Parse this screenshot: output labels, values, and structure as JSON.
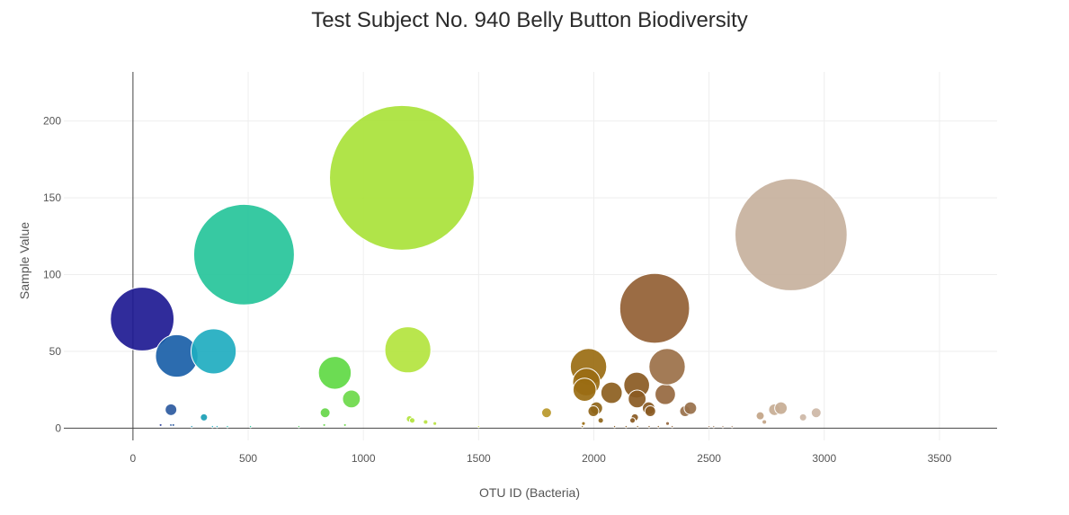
{
  "chart_data": {
    "type": "scatter",
    "title": "Test Subject No. 940 Belly Button Biodiversity",
    "xlabel": "OTU ID (Bacteria)",
    "ylabel": "Sample Value",
    "xlim": [
      -300,
      3750
    ],
    "ylim": [
      -8,
      232
    ],
    "xticks": [
      0,
      500,
      1000,
      1500,
      2000,
      2500,
      3000,
      3500
    ],
    "yticks": [
      0,
      50,
      100,
      150,
      200
    ],
    "grid": true,
    "colorscale": "Earth",
    "points": [
      {
        "x": 40,
        "y": 71,
        "color": "#1e1a93"
      },
      {
        "x": 190,
        "y": 47,
        "color": "#1a5fa8"
      },
      {
        "x": 350,
        "y": 50,
        "color": "#1fadc0"
      },
      {
        "x": 165,
        "y": 12,
        "color": "#2d5aa0"
      },
      {
        "x": 308,
        "y": 7,
        "color": "#1a9eb5"
      },
      {
        "x": 482,
        "y": 113,
        "color": "#26c49a"
      },
      {
        "x": 876,
        "y": 36,
        "color": "#5fd944"
      },
      {
        "x": 948,
        "y": 19,
        "color": "#6cd94a"
      },
      {
        "x": 834,
        "y": 10,
        "color": "#66d649"
      },
      {
        "x": 1167,
        "y": 163,
        "color": "#a9e23a"
      },
      {
        "x": 1193,
        "y": 51,
        "color": "#b3e43e"
      },
      {
        "x": 1795,
        "y": 10,
        "color": "#b8982a"
      },
      {
        "x": 1977,
        "y": 40,
        "color": "#9a6d12"
      },
      {
        "x": 1968,
        "y": 30,
        "color": "#9a6d12"
      },
      {
        "x": 1960,
        "y": 25,
        "color": "#9a6d12"
      },
      {
        "x": 2011,
        "y": 13,
        "color": "#8f6519"
      },
      {
        "x": 1998,
        "y": 11,
        "color": "#8f6519"
      },
      {
        "x": 2077,
        "y": 23,
        "color": "#8c5e1e"
      },
      {
        "x": 2186,
        "y": 28,
        "color": "#8a5a22"
      },
      {
        "x": 2188,
        "y": 19,
        "color": "#8a5a22"
      },
      {
        "x": 2238,
        "y": 13,
        "color": "#8a5a22"
      },
      {
        "x": 2245,
        "y": 11,
        "color": "#8a5a22"
      },
      {
        "x": 2264,
        "y": 78,
        "color": "#926034"
      },
      {
        "x": 2310,
        "y": 22,
        "color": "#96683f"
      },
      {
        "x": 2318,
        "y": 40,
        "color": "#9b7048"
      },
      {
        "x": 2396,
        "y": 11,
        "color": "#98704a"
      },
      {
        "x": 2419,
        "y": 13,
        "color": "#98704a"
      },
      {
        "x": 2856,
        "y": 126,
        "color": "#c7b19d"
      },
      {
        "x": 2722,
        "y": 8,
        "color": "#c2a487"
      },
      {
        "x": 2784,
        "y": 12,
        "color": "#c7ac94"
      },
      {
        "x": 2812,
        "y": 13,
        "color": "#c7ac94"
      },
      {
        "x": 2965,
        "y": 10,
        "color": "#cdb7a6"
      },
      {
        "x": 2908,
        "y": 7,
        "color": "#cdb7a6"
      },
      {
        "x": 2178,
        "y": 7,
        "color": "#8a5a22"
      },
      {
        "x": 2168,
        "y": 5,
        "color": "#8a5a22"
      },
      {
        "x": 1200,
        "y": 6,
        "color": "#b3e43e"
      },
      {
        "x": 1212,
        "y": 5,
        "color": "#b3e43e"
      },
      {
        "x": 1270,
        "y": 4,
        "color": "#b8e23f"
      },
      {
        "x": 1310,
        "y": 3,
        "color": "#b8e23f"
      },
      {
        "x": 2030,
        "y": 5,
        "color": "#8f6519"
      },
      {
        "x": 1955,
        "y": 3,
        "color": "#9a6d12"
      },
      {
        "x": 2740,
        "y": 4,
        "color": "#c2a487"
      },
      {
        "x": 2320,
        "y": 3,
        "color": "#96683f"
      },
      {
        "x": 120,
        "y": 2,
        "color": "#2a3f9a"
      },
      {
        "x": 165,
        "y": 2,
        "color": "#2d5aa0"
      },
      {
        "x": 175,
        "y": 2,
        "color": "#2d5aa0"
      },
      {
        "x": 255,
        "y": 1,
        "color": "#1a8fb0"
      },
      {
        "x": 345,
        "y": 1,
        "color": "#1fadc0"
      },
      {
        "x": 365,
        "y": 1,
        "color": "#1fadc0"
      },
      {
        "x": 410,
        "y": 1,
        "color": "#23b8b0"
      },
      {
        "x": 510,
        "y": 1,
        "color": "#26c49a"
      },
      {
        "x": 720,
        "y": 1,
        "color": "#4ecf5a"
      },
      {
        "x": 830,
        "y": 2,
        "color": "#66d649"
      },
      {
        "x": 920,
        "y": 2,
        "color": "#6cd94a"
      },
      {
        "x": 1500,
        "y": 1,
        "color": "#c9e04a"
      },
      {
        "x": 1950,
        "y": 1,
        "color": "#9a6d12"
      },
      {
        "x": 2090,
        "y": 1,
        "color": "#8c5e1e"
      },
      {
        "x": 2140,
        "y": 1,
        "color": "#8a5a22"
      },
      {
        "x": 2190,
        "y": 1,
        "color": "#8a5a22"
      },
      {
        "x": 2240,
        "y": 1,
        "color": "#8a5a22"
      },
      {
        "x": 2280,
        "y": 1,
        "color": "#8a5a22"
      },
      {
        "x": 2340,
        "y": 1,
        "color": "#96683f"
      },
      {
        "x": 2500,
        "y": 1,
        "color": "#a88466"
      },
      {
        "x": 2520,
        "y": 1,
        "color": "#a88466"
      },
      {
        "x": 2560,
        "y": 1,
        "color": "#b08e72"
      },
      {
        "x": 2600,
        "y": 1,
        "color": "#b08e72"
      }
    ]
  }
}
